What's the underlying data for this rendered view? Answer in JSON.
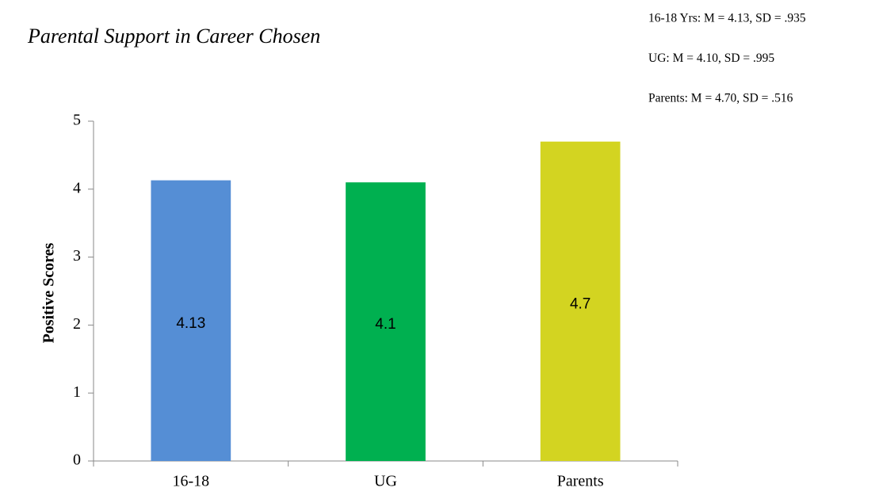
{
  "chart_data": {
    "type": "bar",
    "title": "Parental Support in Career Chosen",
    "y_label": "Positive Scores",
    "annotations": [
      "16-18 Yrs:  M = 4.13, SD = .935",
      "UG:  M = 4.10, SD = .995",
      "Parents:  M = 4.70, SD = .516"
    ],
    "categories": [
      "16-18",
      "UG",
      "Parents"
    ],
    "values": [
      4.13,
      4.1,
      4.7
    ],
    "colors": [
      "#558ed5",
      "#00b050",
      "#d3d421"
    ],
    "ylim": [
      0,
      5
    ],
    "yticks": [
      0,
      1,
      2,
      3,
      4,
      5
    ],
    "grid": false,
    "data_labels": true
  }
}
